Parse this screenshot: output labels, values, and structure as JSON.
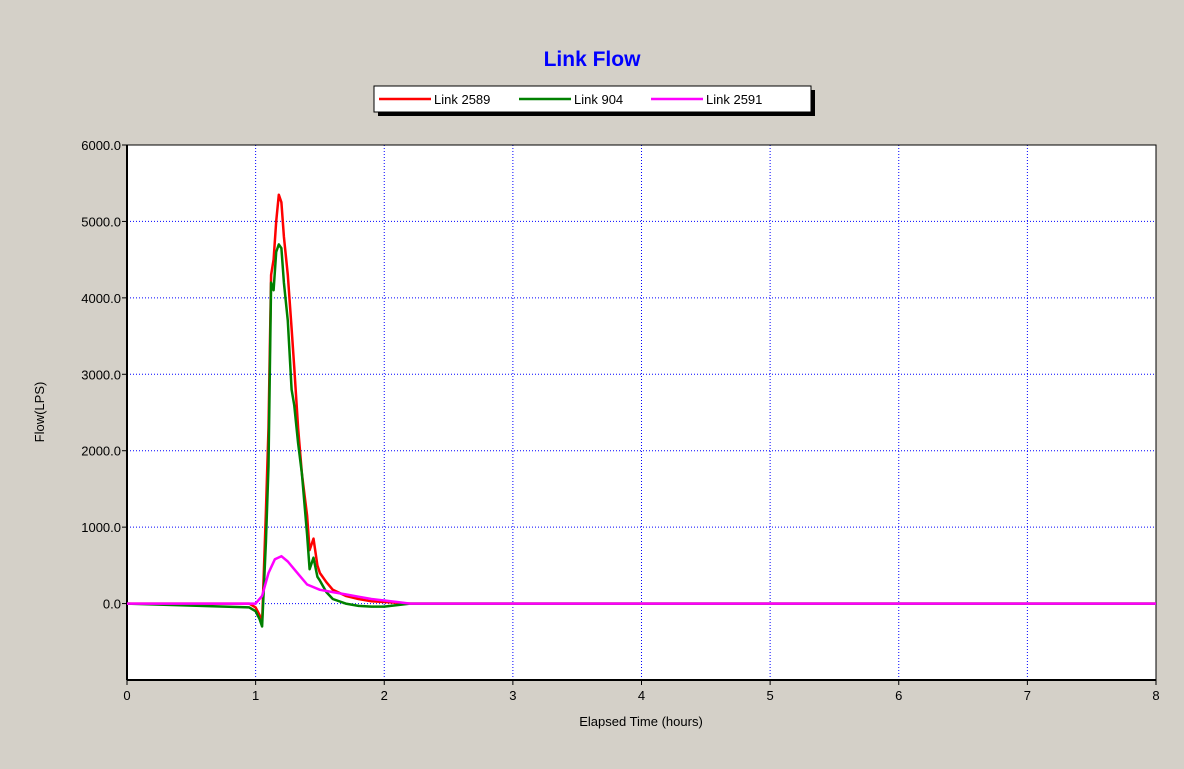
{
  "chart_data": {
    "type": "line",
    "title": "Link Flow",
    "xlabel": "Elapsed Time (hours)",
    "ylabel": "Flow(LPS)",
    "xlim": [
      0,
      8
    ],
    "ylim": [
      -1000,
      6000
    ],
    "x_ticks": [
      0,
      1,
      2,
      3,
      4,
      5,
      6,
      7,
      8
    ],
    "x_tick_labels": [
      "0",
      "1",
      "2",
      "3",
      "4",
      "5",
      "6",
      "7",
      "8"
    ],
    "y_ticks": [
      0,
      1000,
      2000,
      3000,
      4000,
      5000,
      6000
    ],
    "y_tick_labels": [
      "0.0",
      "1000.0",
      "2000.0",
      "3000.0",
      "4000.0",
      "5000.0",
      "6000.0"
    ],
    "grid": true,
    "legend_position": "top-center",
    "series": [
      {
        "name": "Link 2589",
        "color": "#ff0000",
        "x": [
          0,
          0.95,
          1.0,
          1.03,
          1.05,
          1.08,
          1.1,
          1.12,
          1.14,
          1.16,
          1.18,
          1.2,
          1.22,
          1.25,
          1.28,
          1.3,
          1.33,
          1.36,
          1.4,
          1.42,
          1.45,
          1.48,
          1.5,
          1.55,
          1.6,
          1.7,
          1.8,
          1.9,
          2.0,
          2.1,
          2.2,
          8
        ],
        "y": [
          0,
          0,
          -50,
          -150,
          -250,
          1200,
          2300,
          4300,
          4500,
          5000,
          5350,
          5250,
          4800,
          4300,
          3600,
          3100,
          2300,
          1700,
          1150,
          700,
          850,
          500,
          400,
          280,
          180,
          100,
          60,
          30,
          20,
          10,
          0,
          0
        ]
      },
      {
        "name": "Link 904",
        "color": "#008000",
        "x": [
          0,
          0.95,
          1.0,
          1.03,
          1.05,
          1.08,
          1.1,
          1.12,
          1.14,
          1.16,
          1.18,
          1.2,
          1.22,
          1.25,
          1.28,
          1.3,
          1.33,
          1.36,
          1.4,
          1.42,
          1.45,
          1.48,
          1.5,
          1.55,
          1.6,
          1.7,
          1.8,
          1.9,
          2.0,
          2.1,
          2.2,
          8
        ],
        "y": [
          0,
          -50,
          -100,
          -200,
          -300,
          800,
          1800,
          4200,
          4100,
          4600,
          4700,
          4650,
          4200,
          3700,
          2800,
          2600,
          2100,
          1700,
          900,
          450,
          600,
          350,
          300,
          150,
          60,
          0,
          -30,
          -40,
          -40,
          -20,
          0,
          0
        ]
      },
      {
        "name": "Link 2591",
        "color": "#ff00ff",
        "x": [
          0,
          1.0,
          1.05,
          1.1,
          1.15,
          1.2,
          1.25,
          1.3,
          1.35,
          1.4,
          1.5,
          1.6,
          1.7,
          1.8,
          1.9,
          2.0,
          2.1,
          2.2,
          8
        ],
        "y": [
          0,
          0,
          100,
          400,
          580,
          620,
          550,
          450,
          350,
          250,
          180,
          150,
          120,
          90,
          60,
          40,
          20,
          0,
          0
        ]
      }
    ]
  }
}
